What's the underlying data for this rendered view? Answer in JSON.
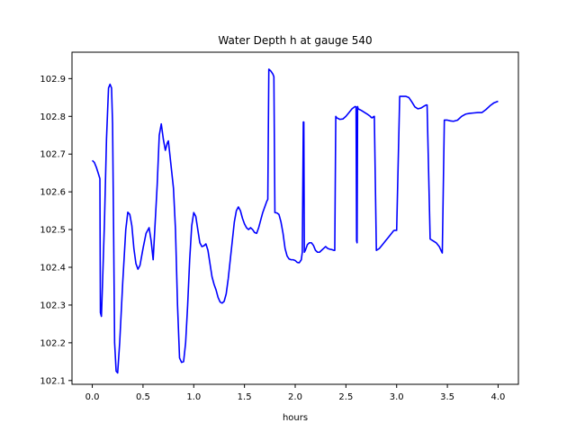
{
  "chart_data": {
    "type": "line",
    "title": "Water Depth h at gauge 540",
    "xlabel": "hours",
    "ylabel": "",
    "xlim": [
      -0.2,
      4.2
    ],
    "ylim": [
      102.09,
      102.97
    ],
    "grid": false,
    "xticks": [
      0.0,
      0.5,
      1.0,
      1.5,
      2.0,
      2.5,
      3.0,
      3.5,
      4.0
    ],
    "xtick_labels": [
      "0.0",
      "0.5",
      "1.0",
      "1.5",
      "2.0",
      "2.5",
      "3.0",
      "3.5",
      "4.0"
    ],
    "yticks": [
      102.1,
      102.2,
      102.3,
      102.4,
      102.5,
      102.6,
      102.7,
      102.8,
      102.9
    ],
    "ytick_labels": [
      "102.1",
      "102.2",
      "102.3",
      "102.4",
      "102.5",
      "102.6",
      "102.7",
      "102.8",
      "102.9"
    ],
    "series": [
      {
        "color": "#0000ff",
        "x": [
          0.0,
          0.02,
          0.04,
          0.06,
          0.075,
          0.08,
          0.09,
          0.1,
          0.12,
          0.14,
          0.16,
          0.175,
          0.19,
          0.2,
          0.21,
          0.22,
          0.235,
          0.25,
          0.27,
          0.3,
          0.33,
          0.35,
          0.37,
          0.39,
          0.41,
          0.43,
          0.45,
          0.47,
          0.5,
          0.53,
          0.56,
          0.58,
          0.6,
          0.62,
          0.64,
          0.66,
          0.68,
          0.7,
          0.72,
          0.74,
          0.75,
          0.76,
          0.78,
          0.8,
          0.82,
          0.84,
          0.86,
          0.88,
          0.9,
          0.92,
          0.94,
          0.96,
          0.98,
          1.0,
          1.02,
          1.04,
          1.06,
          1.08,
          1.1,
          1.12,
          1.14,
          1.16,
          1.18,
          1.2,
          1.22,
          1.24,
          1.26,
          1.28,
          1.3,
          1.32,
          1.34,
          1.36,
          1.38,
          1.4,
          1.42,
          1.44,
          1.46,
          1.48,
          1.5,
          1.52,
          1.54,
          1.56,
          1.58,
          1.6,
          1.62,
          1.64,
          1.66,
          1.68,
          1.7,
          1.72,
          1.73,
          1.74,
          1.76,
          1.78,
          1.79,
          1.8,
          1.82,
          1.84,
          1.86,
          1.88,
          1.9,
          1.92,
          1.94,
          1.96,
          1.98,
          2.0,
          2.02,
          2.04,
          2.06,
          2.07,
          2.08,
          2.085,
          2.09,
          2.1,
          2.12,
          2.14,
          2.16,
          2.18,
          2.2,
          2.22,
          2.24,
          2.26,
          2.28,
          2.3,
          2.32,
          2.34,
          2.36,
          2.38,
          2.39,
          2.4,
          2.41,
          2.44,
          2.47,
          2.5,
          2.53,
          2.56,
          2.59,
          2.6,
          2.605,
          2.61,
          2.615,
          2.62,
          2.65,
          2.68,
          2.71,
          2.74,
          2.75,
          2.76,
          2.77,
          2.78,
          2.8,
          2.83,
          2.86,
          2.89,
          2.92,
          2.95,
          2.97,
          2.98,
          3.0,
          3.03,
          3.06,
          3.09,
          3.12,
          3.15,
          3.18,
          3.21,
          3.24,
          3.27,
          3.29,
          3.3,
          3.33,
          3.36,
          3.39,
          3.42,
          3.44,
          3.45,
          3.47,
          3.5,
          3.53,
          3.56,
          3.6,
          3.64,
          3.68,
          3.72,
          3.76,
          3.8,
          3.84,
          3.88,
          3.92,
          3.96,
          4.0
        ],
        "y": [
          102.683,
          102.678,
          102.665,
          102.648,
          102.635,
          102.28,
          102.27,
          102.35,
          102.52,
          102.74,
          102.875,
          102.885,
          102.875,
          102.78,
          102.5,
          102.2,
          102.125,
          102.12,
          102.2,
          102.36,
          102.5,
          102.546,
          102.54,
          102.51,
          102.45,
          102.41,
          102.395,
          102.405,
          102.45,
          102.49,
          102.505,
          102.47,
          102.42,
          102.52,
          102.62,
          102.75,
          102.78,
          102.74,
          102.71,
          102.73,
          102.735,
          102.71,
          102.66,
          102.61,
          102.5,
          102.3,
          102.16,
          102.148,
          102.15,
          102.2,
          102.3,
          102.42,
          102.51,
          102.545,
          102.535,
          102.5,
          102.465,
          102.455,
          102.457,
          102.462,
          102.445,
          102.41,
          102.375,
          102.355,
          102.34,
          102.32,
          102.308,
          102.305,
          102.31,
          102.33,
          102.37,
          102.42,
          102.47,
          102.52,
          102.55,
          102.56,
          102.55,
          102.53,
          102.515,
          102.505,
          102.5,
          102.505,
          102.5,
          102.492,
          102.49,
          102.505,
          102.525,
          102.545,
          102.56,
          102.575,
          102.58,
          102.925,
          102.92,
          102.912,
          102.905,
          102.545,
          102.544,
          102.54,
          102.52,
          102.49,
          102.45,
          102.43,
          102.422,
          102.42,
          102.42,
          102.418,
          102.413,
          102.412,
          102.42,
          102.44,
          102.785,
          102.785,
          102.44,
          102.445,
          102.46,
          102.465,
          102.465,
          102.458,
          102.445,
          102.44,
          102.44,
          102.445,
          102.45,
          102.455,
          102.45,
          102.448,
          102.447,
          102.445,
          102.445,
          102.8,
          102.796,
          102.792,
          102.793,
          102.8,
          102.81,
          102.82,
          102.826,
          102.825,
          102.47,
          102.465,
          102.826,
          102.82,
          102.816,
          102.811,
          102.806,
          102.8,
          102.797,
          102.796,
          102.799,
          102.8,
          102.445,
          102.45,
          102.46,
          102.47,
          102.48,
          102.49,
          102.497,
          102.498,
          102.498,
          102.853,
          102.853,
          102.853,
          102.85,
          102.838,
          102.825,
          102.82,
          102.822,
          102.827,
          102.83,
          102.83,
          102.475,
          102.47,
          102.465,
          102.455,
          102.443,
          102.438,
          102.79,
          102.79,
          102.788,
          102.787,
          102.79,
          102.8,
          102.806,
          102.808,
          102.809,
          102.81,
          102.81,
          102.818,
          102.828,
          102.836,
          102.84
        ]
      }
    ]
  }
}
